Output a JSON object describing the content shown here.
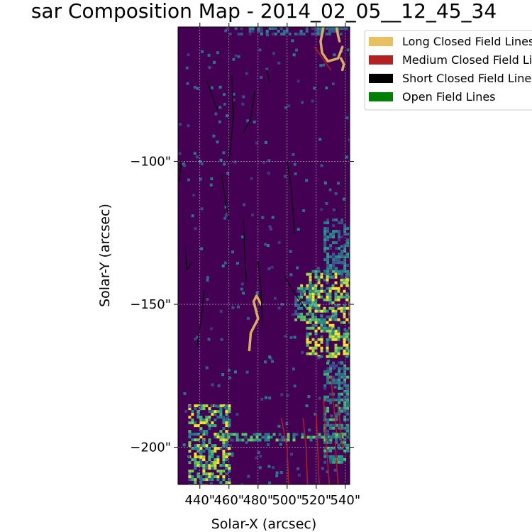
{
  "chart_data": {
    "type": "heatmap",
    "title": "sar Composition Map - 2014_02_05__12_45_34",
    "xlabel": "Solar-X (arcsec)",
    "ylabel": "Solar-Y (arcsec)",
    "xlim": [
      425,
      543
    ],
    "ylim": [
      -213,
      -53
    ],
    "x_ticks": [
      440,
      460,
      480,
      500,
      520,
      540
    ],
    "x_tick_labels": [
      "440\"",
      "460\"",
      "480\"",
      "500\"",
      "520\"",
      "540\""
    ],
    "y_ticks": [
      -100,
      -150,
      -200
    ],
    "y_tick_labels": [
      "−100\"",
      "−150\"",
      "−200\""
    ],
    "grid": true,
    "colormap": "viridis",
    "background_color": "#440154",
    "hot_regions": [
      {
        "x": [
          513,
          543
        ],
        "y": [
          -168,
          -138
        ],
        "intensity": 0.75
      },
      {
        "x": [
          505,
          520
        ],
        "y": [
          -155,
          -143
        ],
        "intensity": 0.6
      },
      {
        "x": [
          432,
          460
        ],
        "y": [
          -213,
          -185
        ],
        "intensity": 0.7
      },
      {
        "x": [
          525,
          543
        ],
        "y": [
          -205,
          -170
        ],
        "intensity": 0.45
      },
      {
        "x": [
          455,
          543
        ],
        "y": [
          -197,
          -195
        ],
        "intensity": 0.5
      },
      {
        "x": [
          525,
          543
        ],
        "y": [
          -140,
          -120
        ],
        "intensity": 0.35
      },
      {
        "x": [
          458,
          540
        ],
        "y": [
          -55,
          -53
        ],
        "intensity": 0.3
      }
    ],
    "series": [
      {
        "name": "Long Closed Field Lines",
        "color": "#e8c060",
        "lines": [
          [
            [
              525,
              -53
            ],
            [
              523,
              -58
            ],
            [
              524,
              -62
            ],
            [
              528,
              -65
            ],
            [
              535,
              -64
            ],
            [
              538,
              -60
            ]
          ],
          [
            [
              534,
              -53
            ],
            [
              535,
              -56
            ],
            [
              536,
              -58
            ]
          ],
          [
            [
              537,
              -64
            ],
            [
              539,
              -66
            ],
            [
              538,
              -68
            ]
          ],
          [
            [
              482,
              -150
            ],
            [
              479,
              -147
            ],
            [
              477,
              -149
            ],
            [
              480,
              -155
            ],
            [
              475,
              -160
            ],
            [
              474,
              -166
            ]
          ]
        ]
      },
      {
        "name": "Medium Closed Field Lines",
        "color": "#b22222",
        "lines": [
          [
            [
              519,
              -60
            ],
            [
              523,
              -63
            ],
            [
              530,
              -68
            ]
          ],
          [
            [
              525,
              -183
            ],
            [
              527,
              -200
            ],
            [
              529,
              -213
            ]
          ],
          [
            [
              520,
              -188
            ],
            [
              521,
              -200
            ],
            [
              522,
              -213
            ]
          ],
          [
            [
              511,
              -190
            ],
            [
              513,
              -200
            ],
            [
              514,
              -213
            ]
          ],
          [
            [
              496,
              -190
            ],
            [
              500,
              -200
            ],
            [
              501,
              -213
            ]
          ],
          [
            [
              533,
              -198
            ],
            [
              535,
              -213
            ]
          ],
          [
            [
              535,
              -185
            ],
            [
              538,
              -200
            ]
          ],
          [
            [
              530,
              -175
            ],
            [
              534,
              -195
            ]
          ]
        ]
      },
      {
        "name": "Short Closed Field Lines",
        "color": "#000000",
        "lines": [
          [
            [
              445,
              -72
            ],
            [
              449,
              -78
            ],
            [
              452,
              -82
            ]
          ],
          [
            [
              462,
              -70
            ],
            [
              463,
              -85
            ],
            [
              460,
              -100
            ]
          ],
          [
            [
              470,
              -90
            ],
            [
              475,
              -85
            ],
            [
              478,
              -75
            ]
          ],
          [
            [
              455,
              -105
            ],
            [
              458,
              -115
            ],
            [
              460,
              -120
            ]
          ],
          [
            [
              480,
              -135
            ],
            [
              482,
              -145
            ],
            [
              483,
              -158
            ]
          ],
          [
            [
              500,
              -100
            ],
            [
              503,
              -110
            ],
            [
              505,
              -125
            ]
          ],
          [
            [
              498,
              -140
            ],
            [
              505,
              -146
            ],
            [
              513,
              -152
            ]
          ],
          [
            [
              427,
              -100
            ],
            [
              426,
              -107
            ]
          ],
          [
            [
              443,
              -145
            ],
            [
              441,
              -155
            ],
            [
              438,
              -165
            ]
          ],
          [
            [
              430,
              -130
            ],
            [
              431,
              -138
            ],
            [
              435,
              -135
            ]
          ],
          [
            [
              470,
              -120
            ],
            [
              471,
              -135
            ],
            [
              472,
              -142
            ]
          ],
          [
            [
              486,
              -68
            ],
            [
              488,
              -72
            ]
          ]
        ]
      },
      {
        "name": "Open Field Lines",
        "color": "#008000",
        "lines": []
      }
    ],
    "legend": {
      "placement": "outside-right-top",
      "entries": [
        {
          "label": "Long Closed Field Lines",
          "color": "#e8c060"
        },
        {
          "label": "Medium Closed Field Lines",
          "color": "#b22222"
        },
        {
          "label": "Short Closed Field Lines",
          "color": "#000000"
        },
        {
          "label": "Open Field Lines",
          "color": "#008000"
        }
      ]
    }
  }
}
